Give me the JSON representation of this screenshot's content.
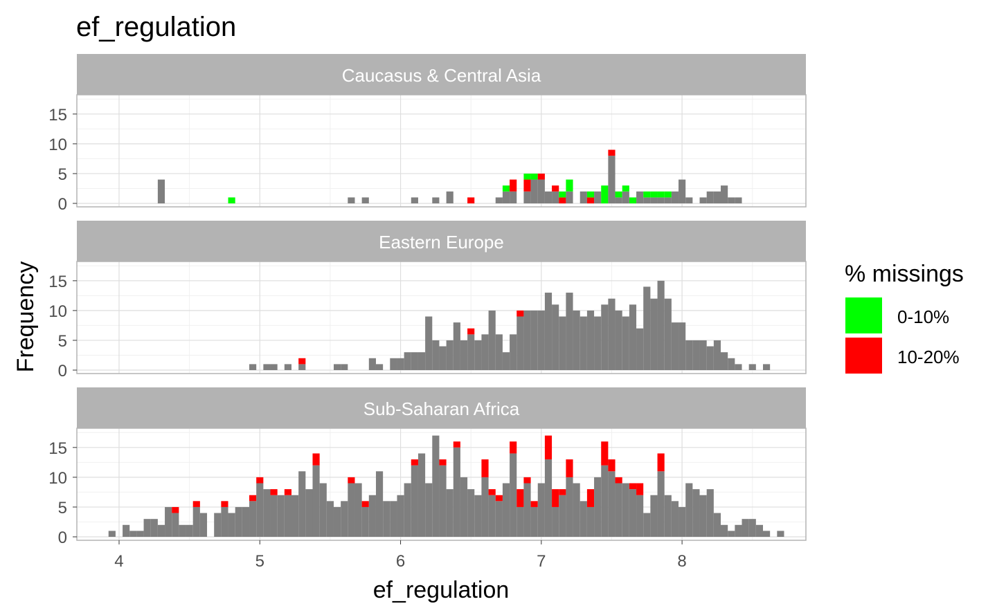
{
  "chart_data": {
    "type": "bar",
    "title": "ef_regulation",
    "xlabel": "ef_regulation",
    "ylabel": "Frequency",
    "xlim": [
      3.7,
      8.88
    ],
    "ylim": [
      0,
      18
    ],
    "xticks": [
      4,
      5,
      6,
      7,
      8
    ],
    "yticks": [
      0,
      5,
      10,
      15
    ],
    "bin_width": 0.05,
    "grid": true,
    "legend": {
      "title": "% missings",
      "position": "right",
      "items": [
        {
          "label": "0-10%",
          "color": "#00ff00"
        },
        {
          "label": "10-20%",
          "color": "#ff0000"
        }
      ]
    },
    "base_color": "#7f7f7f",
    "facets": [
      {
        "label": "Caucasus & Central Asia",
        "bins": [
          {
            "x": 4.3,
            "count": 4
          },
          {
            "x": 4.8,
            "count": 0,
            "green": 1
          },
          {
            "x": 5.65,
            "count": 1
          },
          {
            "x": 5.75,
            "count": 1
          },
          {
            "x": 6.1,
            "count": 1
          },
          {
            "x": 6.25,
            "count": 1
          },
          {
            "x": 6.35,
            "count": 2
          },
          {
            "x": 6.5,
            "count": 0,
            "red": 1
          },
          {
            "x": 6.7,
            "count": 1
          },
          {
            "x": 6.75,
            "count": 2,
            "green": 1
          },
          {
            "x": 6.8,
            "count": 2,
            "red": 2
          },
          {
            "x": 6.9,
            "count": 2,
            "red": 2,
            "green": 1
          },
          {
            "x": 6.95,
            "count": 4,
            "green": 1
          },
          {
            "x": 7.0,
            "count": 4,
            "red": 1
          },
          {
            "x": 7.05,
            "count": 2
          },
          {
            "x": 7.1,
            "count": 2,
            "red": 1
          },
          {
            "x": 7.15,
            "count": 0,
            "red": 1,
            "green": 1
          },
          {
            "x": 7.2,
            "count": 2,
            "green": 2
          },
          {
            "x": 7.3,
            "count": 2
          },
          {
            "x": 7.35,
            "count": 0,
            "red": 1,
            "green": 1
          },
          {
            "x": 7.4,
            "count": 2
          },
          {
            "x": 7.45,
            "count": 0,
            "green": 3
          },
          {
            "x": 7.5,
            "count": 8,
            "red": 1
          },
          {
            "x": 7.55,
            "count": 1,
            "green": 1
          },
          {
            "x": 7.6,
            "count": 2,
            "green": 1
          },
          {
            "x": 7.65,
            "count": 0,
            "green": 1
          },
          {
            "x": 7.7,
            "count": 2
          },
          {
            "x": 7.75,
            "count": 1,
            "green": 1
          },
          {
            "x": 7.8,
            "count": 1,
            "green": 1
          },
          {
            "x": 7.85,
            "count": 1,
            "green": 1
          },
          {
            "x": 7.9,
            "count": 1,
            "green": 1
          },
          {
            "x": 7.95,
            "count": 2
          },
          {
            "x": 8.0,
            "count": 4
          },
          {
            "x": 8.05,
            "count": 1
          },
          {
            "x": 8.15,
            "count": 1
          },
          {
            "x": 8.2,
            "count": 2
          },
          {
            "x": 8.25,
            "count": 2
          },
          {
            "x": 8.3,
            "count": 3
          },
          {
            "x": 8.35,
            "count": 1
          },
          {
            "x": 8.4,
            "count": 1
          }
        ]
      },
      {
        "label": "Eastern Europe",
        "bins": [
          {
            "x": 4.95,
            "count": 1
          },
          {
            "x": 5.05,
            "count": 1
          },
          {
            "x": 5.1,
            "count": 1
          },
          {
            "x": 5.2,
            "count": 1
          },
          {
            "x": 5.3,
            "count": 1,
            "red": 1
          },
          {
            "x": 5.55,
            "count": 1
          },
          {
            "x": 5.6,
            "count": 1
          },
          {
            "x": 5.8,
            "count": 2
          },
          {
            "x": 5.85,
            "count": 1
          },
          {
            "x": 5.95,
            "count": 2
          },
          {
            "x": 6.0,
            "count": 2
          },
          {
            "x": 6.05,
            "count": 3
          },
          {
            "x": 6.1,
            "count": 3
          },
          {
            "x": 6.15,
            "count": 3
          },
          {
            "x": 6.2,
            "count": 9
          },
          {
            "x": 6.25,
            "count": 5
          },
          {
            "x": 6.3,
            "count": 4
          },
          {
            "x": 6.35,
            "count": 5
          },
          {
            "x": 6.4,
            "count": 8
          },
          {
            "x": 6.45,
            "count": 5
          },
          {
            "x": 6.5,
            "count": 6,
            "red": 1
          },
          {
            "x": 6.55,
            "count": 5
          },
          {
            "x": 6.6,
            "count": 6
          },
          {
            "x": 6.65,
            "count": 10
          },
          {
            "x": 6.7,
            "count": 6
          },
          {
            "x": 6.75,
            "count": 3
          },
          {
            "x": 6.8,
            "count": 6
          },
          {
            "x": 6.85,
            "count": 9,
            "red": 1
          },
          {
            "x": 6.9,
            "count": 10
          },
          {
            "x": 6.95,
            "count": 10
          },
          {
            "x": 7.0,
            "count": 10
          },
          {
            "x": 7.05,
            "count": 13
          },
          {
            "x": 7.1,
            "count": 11
          },
          {
            "x": 7.15,
            "count": 9
          },
          {
            "x": 7.2,
            "count": 13
          },
          {
            "x": 7.25,
            "count": 10
          },
          {
            "x": 7.3,
            "count": 9
          },
          {
            "x": 7.35,
            "count": 10
          },
          {
            "x": 7.4,
            "count": 9
          },
          {
            "x": 7.45,
            "count": 11
          },
          {
            "x": 7.5,
            "count": 12
          },
          {
            "x": 7.55,
            "count": 10
          },
          {
            "x": 7.6,
            "count": 9
          },
          {
            "x": 7.65,
            "count": 11
          },
          {
            "x": 7.7,
            "count": 7
          },
          {
            "x": 7.75,
            "count": 14
          },
          {
            "x": 7.8,
            "count": 12
          },
          {
            "x": 7.85,
            "count": 15
          },
          {
            "x": 7.9,
            "count": 12
          },
          {
            "x": 7.95,
            "count": 8
          },
          {
            "x": 8.0,
            "count": 8
          },
          {
            "x": 8.05,
            "count": 5
          },
          {
            "x": 8.1,
            "count": 5
          },
          {
            "x": 8.15,
            "count": 5
          },
          {
            "x": 8.2,
            "count": 4
          },
          {
            "x": 8.25,
            "count": 5
          },
          {
            "x": 8.3,
            "count": 3
          },
          {
            "x": 8.35,
            "count": 2
          },
          {
            "x": 8.4,
            "count": 1
          },
          {
            "x": 8.5,
            "count": 1
          },
          {
            "x": 8.6,
            "count": 1
          }
        ]
      },
      {
        "label": "Sub-Saharan Africa",
        "bins": [
          {
            "x": 3.95,
            "count": 1
          },
          {
            "x": 4.05,
            "count": 2
          },
          {
            "x": 4.1,
            "count": 1
          },
          {
            "x": 4.15,
            "count": 1
          },
          {
            "x": 4.2,
            "count": 3
          },
          {
            "x": 4.25,
            "count": 3
          },
          {
            "x": 4.3,
            "count": 2
          },
          {
            "x": 4.35,
            "count": 5
          },
          {
            "x": 4.4,
            "count": 4,
            "red": 1
          },
          {
            "x": 4.45,
            "count": 2
          },
          {
            "x": 4.5,
            "count": 2
          },
          {
            "x": 4.55,
            "count": 5,
            "red": 1
          },
          {
            "x": 4.6,
            "count": 4
          },
          {
            "x": 4.7,
            "count": 4
          },
          {
            "x": 4.75,
            "count": 5,
            "red": 1
          },
          {
            "x": 4.8,
            "count": 4
          },
          {
            "x": 4.85,
            "count": 5
          },
          {
            "x": 4.9,
            "count": 5
          },
          {
            "x": 4.95,
            "count": 6,
            "red": 1
          },
          {
            "x": 5.0,
            "count": 9,
            "red": 1
          },
          {
            "x": 5.05,
            "count": 8
          },
          {
            "x": 5.1,
            "count": 7,
            "red": 1
          },
          {
            "x": 5.15,
            "count": 7
          },
          {
            "x": 5.2,
            "count": 7,
            "red": 1
          },
          {
            "x": 5.25,
            "count": 7
          },
          {
            "x": 5.3,
            "count": 11
          },
          {
            "x": 5.35,
            "count": 8
          },
          {
            "x": 5.4,
            "count": 12,
            "red": 2
          },
          {
            "x": 5.45,
            "count": 9
          },
          {
            "x": 5.5,
            "count": 6
          },
          {
            "x": 5.55,
            "count": 5
          },
          {
            "x": 5.6,
            "count": 6
          },
          {
            "x": 5.65,
            "count": 9,
            "red": 1
          },
          {
            "x": 5.7,
            "count": 9
          },
          {
            "x": 5.75,
            "count": 5,
            "red": 1
          },
          {
            "x": 5.8,
            "count": 7
          },
          {
            "x": 5.85,
            "count": 11
          },
          {
            "x": 5.9,
            "count": 6
          },
          {
            "x": 5.95,
            "count": 6
          },
          {
            "x": 6.0,
            "count": 7
          },
          {
            "x": 6.05,
            "count": 9
          },
          {
            "x": 6.1,
            "count": 12,
            "red": 1
          },
          {
            "x": 6.15,
            "count": 14
          },
          {
            "x": 6.2,
            "count": 9
          },
          {
            "x": 6.25,
            "count": 17
          },
          {
            "x": 6.3,
            "count": 12,
            "red": 1
          },
          {
            "x": 6.35,
            "count": 8
          },
          {
            "x": 6.4,
            "count": 15,
            "red": 1
          },
          {
            "x": 6.45,
            "count": 10
          },
          {
            "x": 6.5,
            "count": 8
          },
          {
            "x": 6.55,
            "count": 7
          },
          {
            "x": 6.6,
            "count": 10,
            "red": 3
          },
          {
            "x": 6.65,
            "count": 7,
            "red": 1
          },
          {
            "x": 6.7,
            "count": 6,
            "red": 1
          },
          {
            "x": 6.75,
            "count": 9
          },
          {
            "x": 6.8,
            "count": 14,
            "red": 2
          },
          {
            "x": 6.85,
            "count": 5,
            "red": 3
          },
          {
            "x": 6.9,
            "count": 9,
            "red": 1
          },
          {
            "x": 6.95,
            "count": 5,
            "red": 1
          },
          {
            "x": 7.0,
            "count": 9
          },
          {
            "x": 7.05,
            "count": 13,
            "red": 4
          },
          {
            "x": 7.1,
            "count": 5,
            "red": 3
          },
          {
            "x": 7.15,
            "count": 7,
            "red": 1
          },
          {
            "x": 7.2,
            "count": 10,
            "red": 3
          },
          {
            "x": 7.25,
            "count": 9
          },
          {
            "x": 7.3,
            "count": 6
          },
          {
            "x": 7.35,
            "count": 5,
            "red": 3
          },
          {
            "x": 7.4,
            "count": 10
          },
          {
            "x": 7.45,
            "count": 12,
            "red": 4
          },
          {
            "x": 7.5,
            "count": 11,
            "red": 2
          },
          {
            "x": 7.55,
            "count": 9,
            "red": 1
          },
          {
            "x": 7.6,
            "count": 9
          },
          {
            "x": 7.65,
            "count": 8,
            "red": 1
          },
          {
            "x": 7.7,
            "count": 7,
            "red": 2
          },
          {
            "x": 7.75,
            "count": 4
          },
          {
            "x": 7.8,
            "count": 7
          },
          {
            "x": 7.85,
            "count": 11,
            "red": 3
          },
          {
            "x": 7.9,
            "count": 7
          },
          {
            "x": 7.95,
            "count": 6
          },
          {
            "x": 8.0,
            "count": 5
          },
          {
            "x": 8.05,
            "count": 9
          },
          {
            "x": 8.1,
            "count": 8
          },
          {
            "x": 8.15,
            "count": 7
          },
          {
            "x": 8.2,
            "count": 8
          },
          {
            "x": 8.25,
            "count": 4
          },
          {
            "x": 8.3,
            "count": 2
          },
          {
            "x": 8.35,
            "count": 1
          },
          {
            "x": 8.4,
            "count": 2
          },
          {
            "x": 8.45,
            "count": 3
          },
          {
            "x": 8.5,
            "count": 3
          },
          {
            "x": 8.55,
            "count": 2
          },
          {
            "x": 8.6,
            "count": 1
          },
          {
            "x": 8.7,
            "count": 1
          }
        ]
      }
    ]
  }
}
